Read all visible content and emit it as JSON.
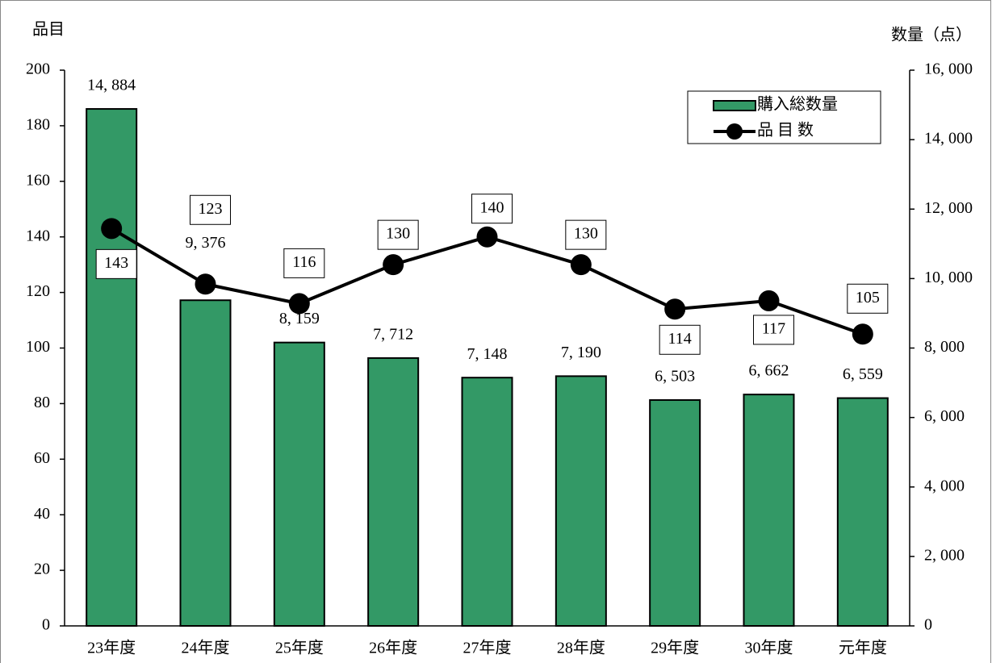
{
  "chart_data": {
    "type": "bar-line",
    "y_axis_label": "品目",
    "y2_axis_label": "数量（点）",
    "categories": [
      "23年度",
      "24年度",
      "25年度",
      "26年度",
      "27年度",
      "28年度",
      "29年度",
      "30年度",
      "元年度"
    ],
    "ylim": [
      0,
      200
    ],
    "yticks": [
      0,
      20,
      40,
      60,
      80,
      100,
      120,
      140,
      160,
      180,
      200
    ],
    "y2lim": [
      0,
      16000
    ],
    "y2ticks": [
      0,
      {
        "value": 2000,
        "label": "2, 000"
      },
      {
        "value": 4000,
        "label": "4, 000"
      },
      {
        "value": 6000,
        "label": "6, 000"
      },
      {
        "value": 8000,
        "label": "8, 000"
      },
      {
        "value": 10000,
        "label": "10, 000"
      },
      {
        "value": 12000,
        "label": "12, 000"
      },
      {
        "value": 14000,
        "label": "14, 000"
      },
      {
        "value": 16000,
        "label": "16, 000"
      }
    ],
    "legend": "upper right",
    "series": [
      {
        "name": "購入総数量",
        "type": "bar",
        "axis": "y2",
        "color": "#339966",
        "values": [
          14884,
          9376,
          8159,
          7712,
          7148,
          7190,
          6503,
          6662,
          6559
        ],
        "value_labels": [
          "14, 884",
          "9, 376",
          "8, 159",
          "7, 712",
          "7, 148",
          "7, 190",
          "6, 503",
          "6, 662",
          "6, 559"
        ]
      },
      {
        "name": "品 目 数",
        "type": "line",
        "color": "#000000",
        "values": [
          143,
          123,
          116,
          130,
          140,
          130,
          114,
          117,
          105
        ]
      }
    ]
  }
}
